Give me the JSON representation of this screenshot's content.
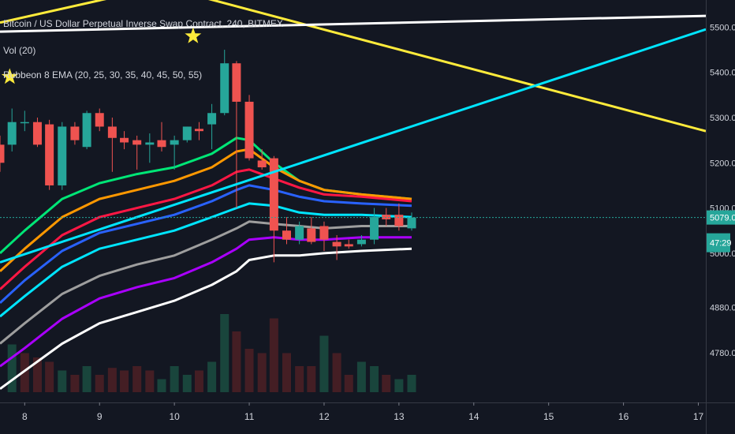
{
  "legend": {
    "title": "Bitcoin / US Dollar Perpetual Inverse Swap Contract, 240, BITMEX",
    "volume": "Vol (20)",
    "ema": "Rubbeon 8 EMA  (20, 25, 30, 35, 40, 45, 50, 55)"
  },
  "price_tag": "5079.0",
  "countdown_tag": "47:29",
  "colors": {
    "background": "#131722",
    "up": "#26a69a",
    "down": "#ef5350",
    "price_line": "#26a69a",
    "trendline_yellow": "#ffeb3b",
    "trendline_white": "#ffffff",
    "trendline_cyan": "#00e5ff",
    "star": "#ffeb3b"
  },
  "chart_data": {
    "type": "candlestick",
    "title": "Bitcoin / US Dollar Perpetual Inverse Swap Contract, 240, BITMEX",
    "x_ticks": [
      "8",
      "9",
      "10",
      "11",
      "12",
      "13",
      "14",
      "15",
      "16",
      "17"
    ],
    "x_range": [
      7.67,
      17.1
    ],
    "y_ticks": [
      "5500.0",
      "5400.0",
      "5300.0",
      "5200.0",
      "5100.0",
      "5000.0",
      "4880.0",
      "4780.0"
    ],
    "y_tick_values": [
      5500,
      5400,
      5300,
      5200,
      5100,
      5000,
      4880,
      4780
    ],
    "y_range": [
      4670,
      5560
    ],
    "last_price": 5079.0,
    "candles": [
      {
        "t": 7.67,
        "o": 5240,
        "h": 5260,
        "c": 5200,
        "l": 5180
      },
      {
        "t": 7.83,
        "o": 5240,
        "h": 5320,
        "c": 5290,
        "l": 5225
      },
      {
        "t": 8.0,
        "o": 5290,
        "h": 5315,
        "c": 5290,
        "l": 5270
      },
      {
        "t": 8.17,
        "o": 5290,
        "h": 5300,
        "c": 5240,
        "l": 5235
      },
      {
        "t": 8.33,
        "o": 5285,
        "h": 5295,
        "c": 5150,
        "l": 5140
      },
      {
        "t": 8.5,
        "o": 5150,
        "h": 5290,
        "c": 5280,
        "l": 5140
      },
      {
        "t": 8.67,
        "o": 5280,
        "h": 5290,
        "c": 5250,
        "l": 5240
      },
      {
        "t": 8.83,
        "o": 5235,
        "h": 5315,
        "c": 5310,
        "l": 5230
      },
      {
        "t": 9.0,
        "o": 5310,
        "h": 5320,
        "c": 5280,
        "l": 5270
      },
      {
        "t": 9.17,
        "o": 5280,
        "h": 5300,
        "c": 5255,
        "l": 5180
      },
      {
        "t": 9.33,
        "o": 5255,
        "h": 5270,
        "c": 5245,
        "l": 5230
      },
      {
        "t": 9.5,
        "o": 5250,
        "h": 5260,
        "c": 5240,
        "l": 5185
      },
      {
        "t": 9.67,
        "o": 5240,
        "h": 5265,
        "c": 5245,
        "l": 5200
      },
      {
        "t": 9.83,
        "o": 5250,
        "h": 5290,
        "c": 5235,
        "l": 5225
      },
      {
        "t": 10.0,
        "o": 5240,
        "h": 5260,
        "c": 5250,
        "l": 5185
      },
      {
        "t": 10.17,
        "o": 5250,
        "h": 5280,
        "c": 5280,
        "l": 5245
      },
      {
        "t": 10.33,
        "o": 5275,
        "h": 5290,
        "c": 5270,
        "l": 5250
      },
      {
        "t": 10.5,
        "o": 5285,
        "h": 5330,
        "c": 5310,
        "l": 5230
      },
      {
        "t": 10.67,
        "o": 5310,
        "h": 5450,
        "c": 5420,
        "l": 5305
      },
      {
        "t": 10.83,
        "o": 5420,
        "h": 5425,
        "c": 5335,
        "l": 5100
      },
      {
        "t": 11.0,
        "o": 5335,
        "h": 5350,
        "c": 5210,
        "l": 5205
      },
      {
        "t": 11.17,
        "o": 5205,
        "h": 5230,
        "c": 5190,
        "l": 5185
      },
      {
        "t": 11.33,
        "o": 5210,
        "h": 5215,
        "c": 5050,
        "l": 4980
      },
      {
        "t": 11.5,
        "o": 5050,
        "h": 5080,
        "c": 5030,
        "l": 5020
      },
      {
        "t": 11.67,
        "o": 5030,
        "h": 5070,
        "c": 5060,
        "l": 5020
      },
      {
        "t": 11.83,
        "o": 5055,
        "h": 5080,
        "c": 5025,
        "l": 5020
      },
      {
        "t": 12.0,
        "o": 5060,
        "h": 5070,
        "c": 5030,
        "l": 5005
      },
      {
        "t": 12.17,
        "o": 5025,
        "h": 5040,
        "c": 5015,
        "l": 4985
      },
      {
        "t": 12.33,
        "o": 5020,
        "h": 5030,
        "c": 5015,
        "l": 5010
      },
      {
        "t": 12.5,
        "o": 5020,
        "h": 5040,
        "c": 5030,
        "l": 5015
      },
      {
        "t": 12.67,
        "o": 5030,
        "h": 5100,
        "c": 5080,
        "l": 5020
      },
      {
        "t": 12.83,
        "o": 5085,
        "h": 5100,
        "c": 5075,
        "l": 5060
      },
      {
        "t": 13.0,
        "o": 5085,
        "h": 5110,
        "c": 5060,
        "l": 5050
      },
      {
        "t": 13.17,
        "o": 5055,
        "h": 5090,
        "c": 5079,
        "l": 5050
      }
    ],
    "volume": [
      {
        "t": 7.83,
        "v": 0.55,
        "up": true
      },
      {
        "t": 8.0,
        "v": 0.45,
        "up": false
      },
      {
        "t": 8.17,
        "v": 0.4,
        "up": false
      },
      {
        "t": 8.33,
        "v": 0.35,
        "up": false
      },
      {
        "t": 8.5,
        "v": 0.25,
        "up": true
      },
      {
        "t": 8.67,
        "v": 0.2,
        "up": false
      },
      {
        "t": 8.83,
        "v": 0.3,
        "up": true
      },
      {
        "t": 9.0,
        "v": 0.2,
        "up": false
      },
      {
        "t": 9.17,
        "v": 0.28,
        "up": false
      },
      {
        "t": 9.33,
        "v": 0.25,
        "up": false
      },
      {
        "t": 9.5,
        "v": 0.3,
        "up": false
      },
      {
        "t": 9.67,
        "v": 0.25,
        "up": false
      },
      {
        "t": 9.83,
        "v": 0.15,
        "up": true
      },
      {
        "t": 10.0,
        "v": 0.3,
        "up": true
      },
      {
        "t": 10.17,
        "v": 0.2,
        "up": true
      },
      {
        "t": 10.33,
        "v": 0.25,
        "up": false
      },
      {
        "t": 10.5,
        "v": 0.35,
        "up": true
      },
      {
        "t": 10.67,
        "v": 0.9,
        "up": true
      },
      {
        "t": 10.83,
        "v": 0.7,
        "up": false
      },
      {
        "t": 11.0,
        "v": 0.5,
        "up": false
      },
      {
        "t": 11.17,
        "v": 0.45,
        "up": false
      },
      {
        "t": 11.33,
        "v": 0.85,
        "up": false
      },
      {
        "t": 11.5,
        "v": 0.45,
        "up": false
      },
      {
        "t": 11.67,
        "v": 0.3,
        "up": false
      },
      {
        "t": 11.83,
        "v": 0.3,
        "up": false
      },
      {
        "t": 12.0,
        "v": 0.65,
        "up": true
      },
      {
        "t": 12.17,
        "v": 0.45,
        "up": false
      },
      {
        "t": 12.33,
        "v": 0.2,
        "up": false
      },
      {
        "t": 12.5,
        "v": 0.35,
        "up": true
      },
      {
        "t": 12.67,
        "v": 0.3,
        "up": true
      },
      {
        "t": 12.83,
        "v": 0.2,
        "up": false
      },
      {
        "t": 13.0,
        "v": 0.15,
        "up": true
      },
      {
        "t": 13.17,
        "v": 0.2,
        "up": true
      }
    ],
    "ema_lines": [
      {
        "color": "#00e676",
        "points": [
          [
            7.67,
            5000
          ],
          [
            8.0,
            5050
          ],
          [
            8.5,
            5120
          ],
          [
            9.0,
            5155
          ],
          [
            9.5,
            5175
          ],
          [
            10.0,
            5190
          ],
          [
            10.5,
            5220
          ],
          [
            10.83,
            5255
          ],
          [
            11.0,
            5250
          ],
          [
            11.33,
            5200
          ],
          [
            11.67,
            5160
          ],
          [
            12.0,
            5140
          ],
          [
            12.5,
            5130
          ],
          [
            13.17,
            5120
          ]
        ]
      },
      {
        "color": "#ff9800",
        "points": [
          [
            7.67,
            4960
          ],
          [
            8.0,
            5010
          ],
          [
            8.5,
            5080
          ],
          [
            9.0,
            5120
          ],
          [
            9.5,
            5140
          ],
          [
            10.0,
            5160
          ],
          [
            10.5,
            5190
          ],
          [
            10.83,
            5225
          ],
          [
            11.0,
            5230
          ],
          [
            11.33,
            5190
          ],
          [
            11.67,
            5160
          ],
          [
            12.0,
            5140
          ],
          [
            12.5,
            5130
          ],
          [
            13.17,
            5120
          ]
        ]
      },
      {
        "color": "#ff1744",
        "points": [
          [
            7.67,
            4920
          ],
          [
            8.0,
            4970
          ],
          [
            8.5,
            5040
          ],
          [
            9.0,
            5080
          ],
          [
            9.5,
            5100
          ],
          [
            10.0,
            5120
          ],
          [
            10.5,
            5150
          ],
          [
            10.83,
            5180
          ],
          [
            11.0,
            5185
          ],
          [
            11.33,
            5165
          ],
          [
            11.67,
            5145
          ],
          [
            12.0,
            5130
          ],
          [
            12.5,
            5125
          ],
          [
            13.17,
            5115
          ]
        ]
      },
      {
        "color": "#2962ff",
        "points": [
          [
            7.67,
            4890
          ],
          [
            8.0,
            4940
          ],
          [
            8.5,
            5005
          ],
          [
            9.0,
            5045
          ],
          [
            9.5,
            5065
          ],
          [
            10.0,
            5085
          ],
          [
            10.5,
            5115
          ],
          [
            10.83,
            5140
          ],
          [
            11.0,
            5150
          ],
          [
            11.33,
            5140
          ],
          [
            11.67,
            5125
          ],
          [
            12.0,
            5115
          ],
          [
            12.5,
            5110
          ],
          [
            13.17,
            5105
          ]
        ]
      },
      {
        "color": "#00e5ff",
        "points": [
          [
            7.67,
            4860
          ],
          [
            8.0,
            4905
          ],
          [
            8.5,
            4970
          ],
          [
            9.0,
            5010
          ],
          [
            9.5,
            5030
          ],
          [
            10.0,
            5050
          ],
          [
            10.5,
            5080
          ],
          [
            10.83,
            5100
          ],
          [
            11.0,
            5110
          ],
          [
            11.33,
            5105
          ],
          [
            11.67,
            5090
          ],
          [
            12.0,
            5085
          ],
          [
            12.5,
            5085
          ],
          [
            13.17,
            5080
          ]
        ]
      },
      {
        "color": "#9e9e9e",
        "points": [
          [
            7.67,
            4800
          ],
          [
            8.0,
            4845
          ],
          [
            8.5,
            4910
          ],
          [
            9.0,
            4950
          ],
          [
            9.5,
            4975
          ],
          [
            10.0,
            4995
          ],
          [
            10.5,
            5030
          ],
          [
            10.83,
            5055
          ],
          [
            11.0,
            5070
          ],
          [
            11.33,
            5065
          ],
          [
            11.67,
            5060
          ],
          [
            12.0,
            5055
          ],
          [
            12.5,
            5060
          ],
          [
            13.17,
            5060
          ]
        ]
      },
      {
        "color": "#aa00ff",
        "points": [
          [
            7.67,
            4750
          ],
          [
            8.0,
            4790
          ],
          [
            8.5,
            4855
          ],
          [
            9.0,
            4900
          ],
          [
            9.5,
            4925
          ],
          [
            10.0,
            4945
          ],
          [
            10.5,
            4980
          ],
          [
            10.83,
            5010
          ],
          [
            11.0,
            5030
          ],
          [
            11.33,
            5035
          ],
          [
            11.67,
            5030
          ],
          [
            12.0,
            5030
          ],
          [
            12.5,
            5035
          ],
          [
            13.17,
            5035
          ]
        ]
      },
      {
        "color": "#ffffff",
        "points": [
          [
            7.67,
            4700
          ],
          [
            8.0,
            4740
          ],
          [
            8.5,
            4800
          ],
          [
            9.0,
            4845
          ],
          [
            9.5,
            4870
          ],
          [
            10.0,
            4895
          ],
          [
            10.5,
            4930
          ],
          [
            10.83,
            4960
          ],
          [
            11.0,
            4985
          ],
          [
            11.33,
            4995
          ],
          [
            11.67,
            4995
          ],
          [
            12.0,
            5000
          ],
          [
            12.5,
            5005
          ],
          [
            13.17,
            5010
          ]
        ]
      }
    ],
    "trendlines": [
      {
        "color": "#ffeb3b",
        "points": [
          [
            7.67,
            5510
          ],
          [
            9.83,
            5590
          ],
          [
            17.1,
            5270
          ]
        ]
      },
      {
        "color": "#ffffff",
        "points": [
          [
            7.67,
            5490
          ],
          [
            17.1,
            5525
          ]
        ]
      },
      {
        "color": "#00e5ff",
        "points": [
          [
            7.67,
            4980
          ],
          [
            17.1,
            5495
          ]
        ]
      }
    ],
    "stars": [
      [
        7.8,
        5390
      ],
      [
        10.25,
        5480
      ]
    ]
  }
}
